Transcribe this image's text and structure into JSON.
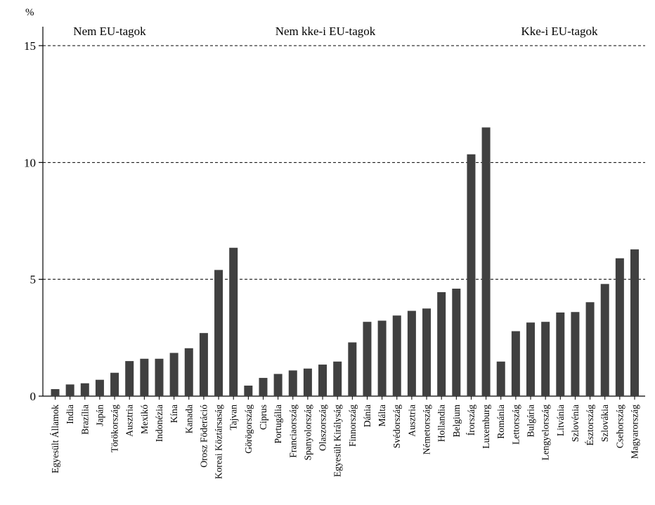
{
  "chart_data": {
    "type": "bar",
    "ylabel": "%",
    "ylim": [
      0,
      15
    ],
    "yticks": [
      0,
      5,
      10,
      15
    ],
    "grid": "dashed horizontal at 5, 10, 15",
    "bar_color": "#404040",
    "groups": [
      {
        "label": "Nem EU-tagok",
        "start": 0,
        "end": 12
      },
      {
        "label": "Nem kke-i EU-tagok",
        "start": 13,
        "end": 30
      },
      {
        "label": "Kke-i EU-tagok",
        "start": 31,
        "end": 40
      }
    ],
    "categories": [
      "Egyesült Államok",
      "India",
      "Brazília",
      "Japán",
      "Törökország",
      "Ausztria",
      "Mexikó",
      "Indonézia",
      "Kína",
      "Kanada",
      "Orosz Föderáció",
      "Koreai Köztársaság",
      "Tajvan",
      "Görögország",
      "Ciprus",
      "Portugália",
      "Franciaország",
      "Spanyolország",
      "Olaszország",
      "Egyesült Királyság",
      "Finnország",
      "Dánia",
      "Málta",
      "Svédország",
      "Ausztria",
      "Németország",
      "Hollandia",
      "Belgium",
      "Írország",
      "Luxemburg",
      "Románia",
      "Lettország",
      "Bulgária",
      "Lengyelország",
      "Litvánia",
      "Szlovénia",
      "Észtország",
      "Szlovákia",
      "Csehország",
      "Magyarország"
    ],
    "values": [
      0.3,
      0.5,
      0.55,
      0.7,
      1.0,
      1.5,
      1.6,
      1.6,
      1.85,
      2.05,
      2.7,
      5.4,
      6.35,
      0.45,
      0.78,
      0.95,
      1.1,
      1.18,
      1.35,
      1.48,
      2.3,
      3.18,
      3.23,
      3.45,
      3.65,
      3.75,
      4.45,
      4.6,
      10.35,
      11.5,
      1.48,
      2.78,
      3.15,
      3.18,
      3.58,
      3.6,
      4.02,
      4.8,
      5.9,
      6.28
    ]
  }
}
